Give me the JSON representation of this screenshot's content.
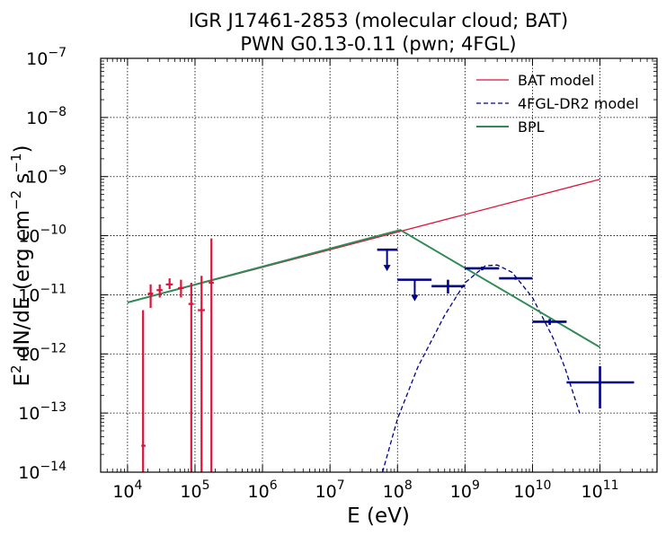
{
  "chart_data": {
    "type": "scatter",
    "title_lines": [
      "IGR J17461-2853 (molecular cloud; BAT)",
      "PWN G0.13-0.11 (pwn; 4FGL)"
    ],
    "xlabel": "E (eV)",
    "ylabel": "E² dN/dE (erg cm⁻² s⁻¹)",
    "x_scale": "log",
    "y_scale": "log",
    "xlim": [
      4000,
      700000000000.0
    ],
    "ylim": [
      1e-14,
      1e-07
    ],
    "grid": true,
    "legend_position": "upper-right",
    "legend": [
      "BAT model",
      "4FGL-DR2 model",
      "BPL"
    ],
    "x_tick_labels": [
      "10^4",
      "10^5",
      "10^6",
      "10^7",
      "10^8",
      "10^9",
      "10^10",
      "10^11"
    ],
    "y_tick_labels": [
      "10^-14",
      "10^-13",
      "10^-12",
      "10^-11",
      "10^-10",
      "10^-9",
      "10^-8",
      "10^-7"
    ],
    "series": [
      {
        "name": "BAT model",
        "kind": "line",
        "color": "#dc143c",
        "dash": "solid",
        "x": [
          10000.0,
          100000000000.0
        ],
        "y": [
          7.4e-12,
          9e-10
        ]
      },
      {
        "name": "4FGL-DR2 model",
        "kind": "line",
        "color": "#00008b",
        "dash": "dashed",
        "x": [
          60000000.0,
          100000000.0,
          200000000.0,
          500000000.0,
          1000000000.0,
          2000000000.0,
          3000000000.0,
          5000000000.0,
          10000000000.0,
          20000000000.0,
          30000000000.0,
          50000000000.0
        ],
        "y": [
          1e-14,
          8e-14,
          6e-13,
          4.5e-12,
          1.6e-11,
          3.1e-11,
          3.2e-11,
          2.4e-11,
          9e-12,
          1.9e-12,
          6e-13,
          1e-13
        ]
      },
      {
        "name": "BPL",
        "kind": "line",
        "color": "#2e8b57",
        "dash": "solid",
        "x": [
          10000.0,
          110000000.0,
          100000000000.0
        ],
        "y": [
          7.4e-12,
          1.25e-10,
          1.3e-12
        ]
      },
      {
        "name": "BAT data",
        "kind": "errorbar",
        "color": "#dc143c",
        "points": [
          {
            "x": 17000,
            "xlo": 16000,
            "xhi": 18500,
            "y": 2.8e-14,
            "ylo": 1e-14,
            "yhi": 5.5e-12
          },
          {
            "x": 22000,
            "xlo": 20000,
            "xhi": 24000,
            "y": 1.05e-11,
            "ylo": 6e-12,
            "yhi": 1.5e-11
          },
          {
            "x": 30000,
            "xlo": 27000,
            "xhi": 33000,
            "y": 1.2e-11,
            "ylo": 9e-12,
            "yhi": 1.5e-11
          },
          {
            "x": 42000,
            "xlo": 37000,
            "xhi": 47000,
            "y": 1.5e-11,
            "ylo": 1.25e-11,
            "yhi": 1.9e-11
          },
          {
            "x": 62000,
            "xlo": 56000,
            "xhi": 68000,
            "y": 1.3e-11,
            "ylo": 9e-12,
            "yhi": 1.8e-11
          },
          {
            "x": 88000,
            "xlo": 80000,
            "xhi": 96000,
            "y": 7e-12,
            "ylo": 1e-14,
            "yhi": 1.6e-11
          },
          {
            "x": 125000,
            "xlo": 110000,
            "xhi": 140000,
            "y": 5.5e-12,
            "ylo": 1e-14,
            "yhi": 2.1e-11
          },
          {
            "x": 175000,
            "xlo": 160000,
            "xhi": 190000,
            "y": 1.6e-11,
            "ylo": 1e-14,
            "yhi": 9e-11
          }
        ]
      },
      {
        "name": "4FGL data",
        "kind": "errorbar",
        "color": "#00008b",
        "points": [
          {
            "x": 70000000.0,
            "xlo": 50000000.0,
            "xhi": 100000000.0,
            "y": 5.8e-11,
            "upper_limit": true
          },
          {
            "x": 180000000.0,
            "xlo": 100000000.0,
            "xhi": 320000000.0,
            "y": 1.8e-11,
            "upper_limit": true
          },
          {
            "x": 560000000.0,
            "xlo": 320000000.0,
            "xhi": 1000000000.0,
            "y": 1.4e-11,
            "ylo": 1.05e-11,
            "yhi": 1.8e-11
          },
          {
            "x": 1800000000.0,
            "xlo": 1000000000.0,
            "xhi": 3200000000.0,
            "y": 2.8e-11,
            "ylo": 2.6e-11,
            "yhi": 3e-11
          },
          {
            "x": 5600000000.0,
            "xlo": 3200000000.0,
            "xhi": 10000000000.0,
            "y": 1.9e-11,
            "ylo": 1.8e-11,
            "yhi": 2e-11
          },
          {
            "x": 18000000000.0,
            "xlo": 10000000000.0,
            "xhi": 32000000000.0,
            "y": 3.5e-12,
            "ylo": 3.1e-12,
            "yhi": 3.9e-12
          },
          {
            "x": 100000000000.0,
            "xlo": 32000000000.0,
            "xhi": 320000000000.0,
            "y": 3.3e-13,
            "ylo": 1.2e-13,
            "yhi": 6.2e-13
          }
        ]
      }
    ]
  }
}
